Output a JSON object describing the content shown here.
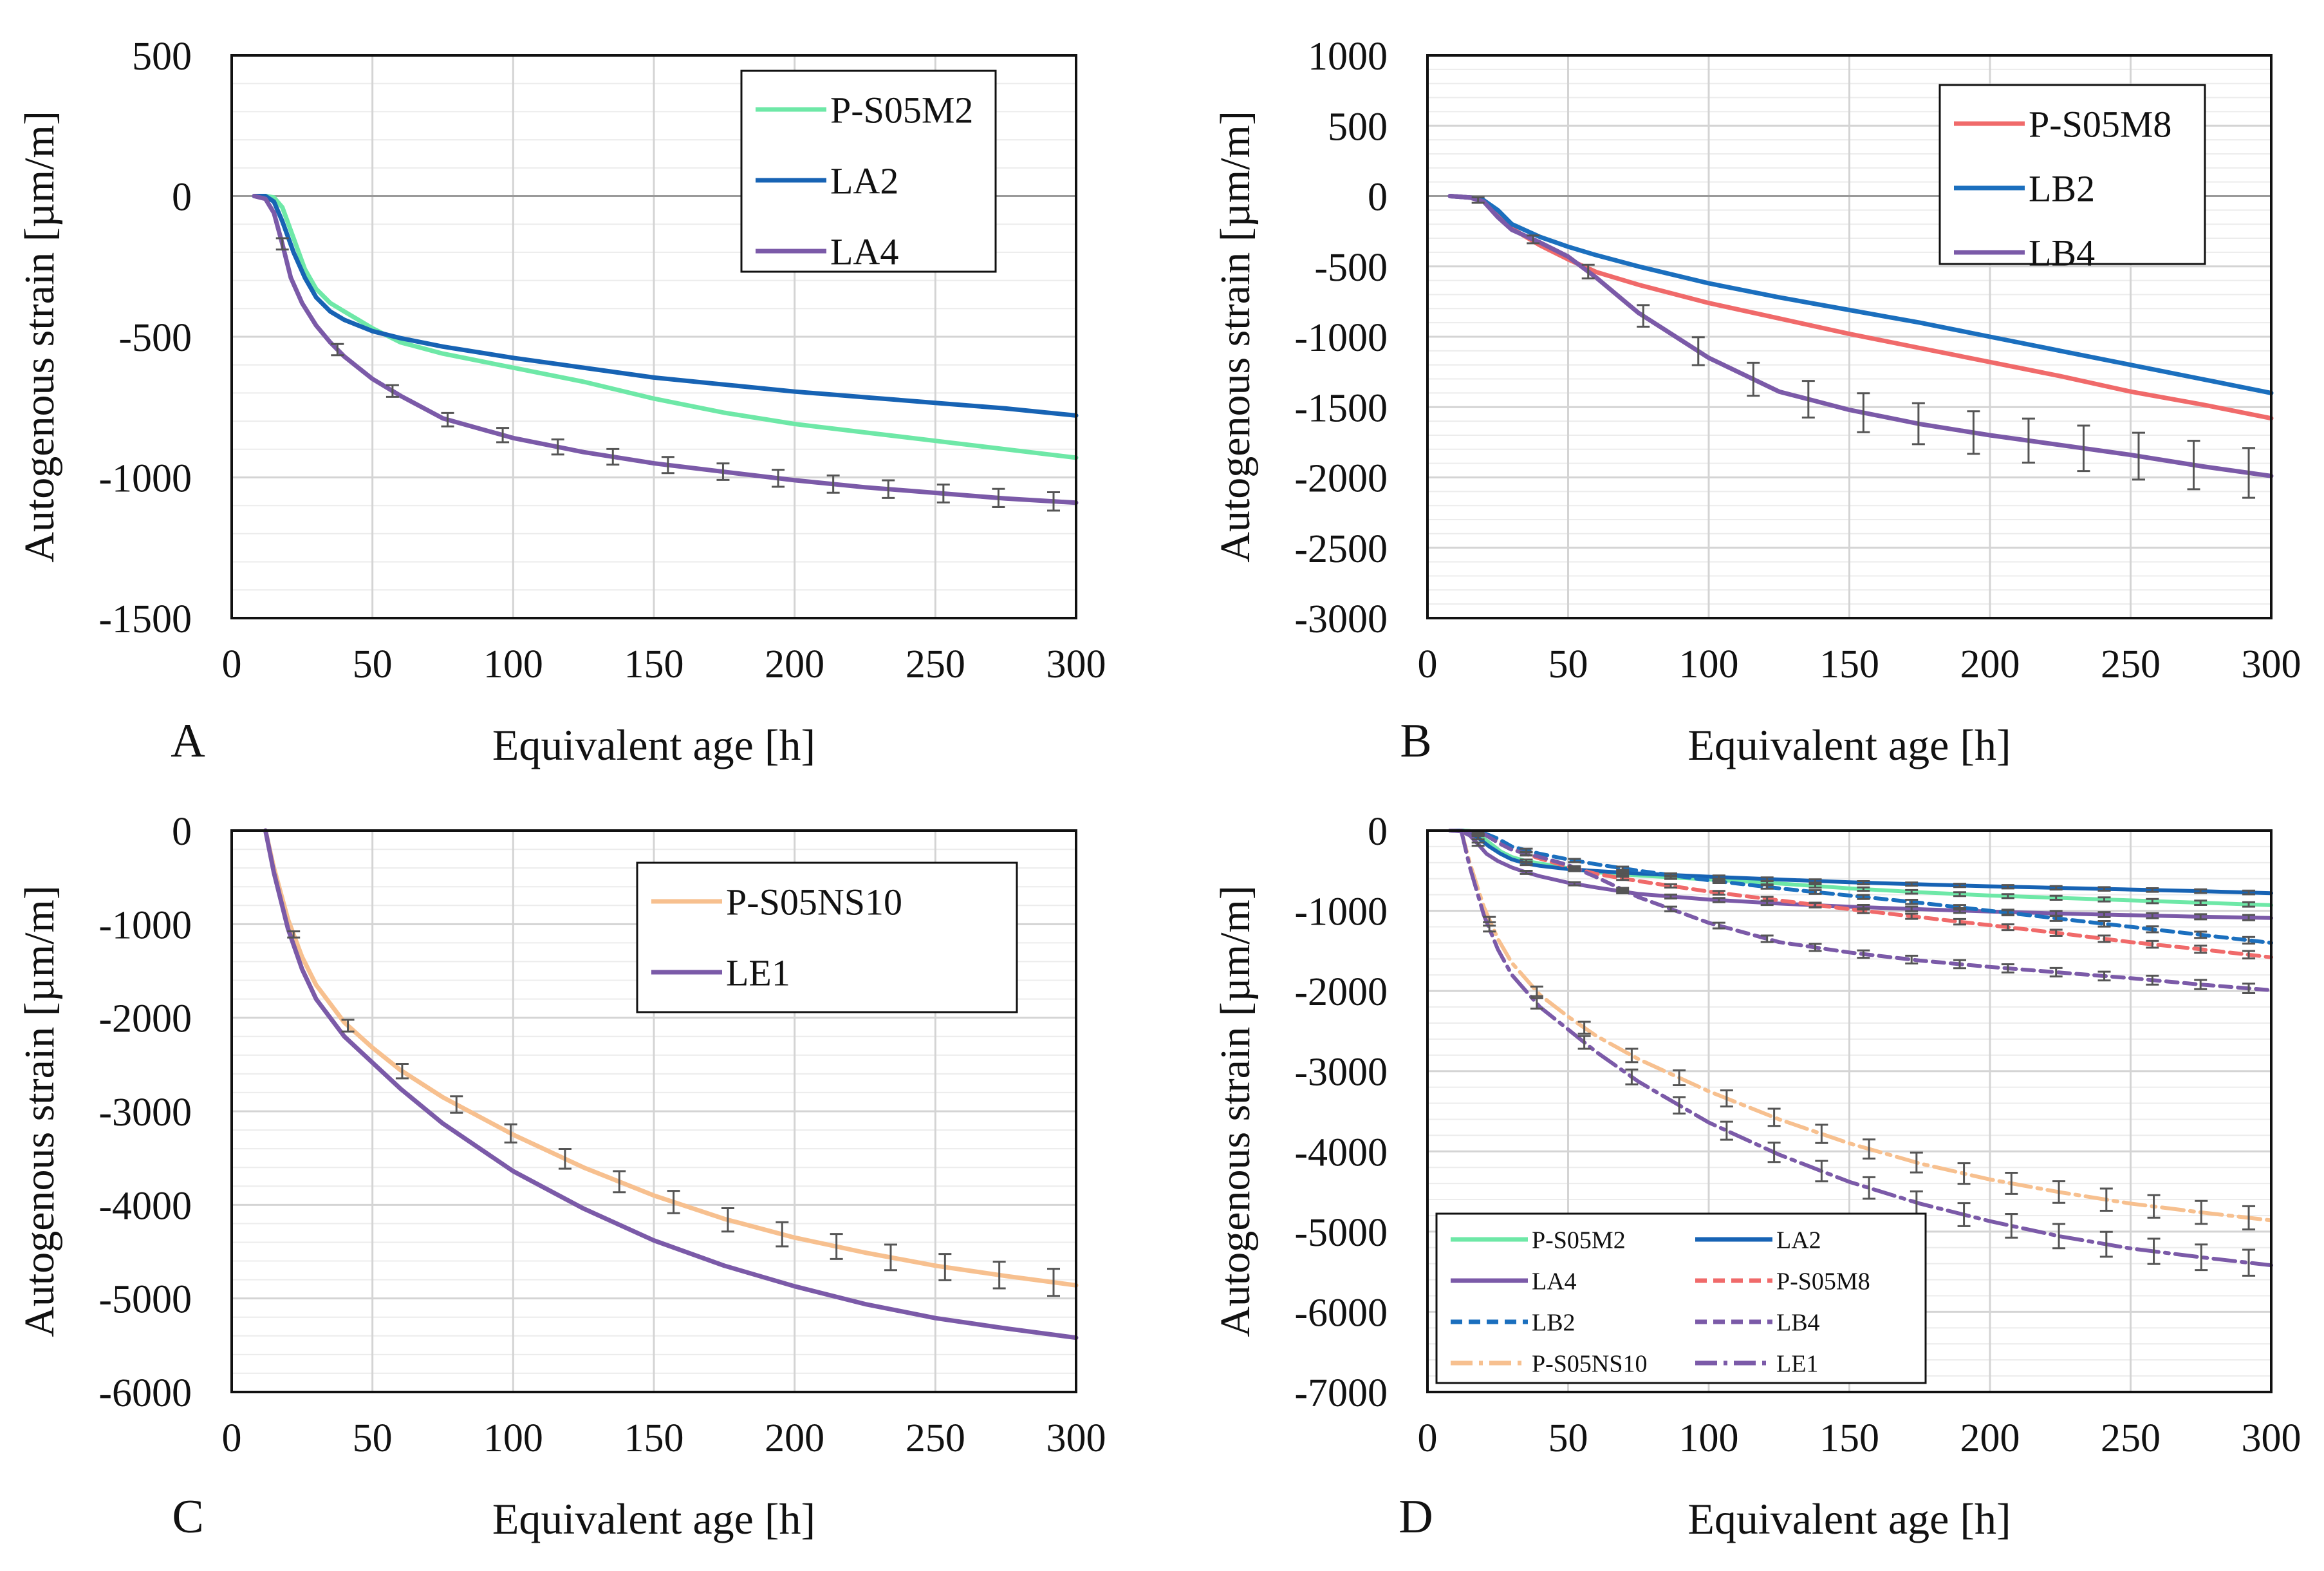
{
  "figure": {
    "colors": {
      "P-S05M2": "#6ee8a7",
      "LA2": "#1763b4",
      "LA4": "#7b5aa8",
      "P-S05M8": "#f06a6a",
      "LB2": "#1b6fbe",
      "LB4": "#7b5aa8",
      "P-S05NS10": "#f7c08f",
      "LE1": "#7b5aa8",
      "axis": "#111111",
      "grid_major": "#d4d4d4",
      "grid_minor": "#ececec",
      "error_bar": "#555555"
    }
  },
  "chart_data": [
    {
      "panel": "A",
      "type": "line",
      "panel_label": "A",
      "xlabel": "Equivalent age [h]",
      "ylabel": "Autogenous strain [µm/m]",
      "xlim": [
        0,
        300
      ],
      "ylim": [
        -1500,
        500
      ],
      "xticks": [
        0,
        50,
        100,
        150,
        200,
        250,
        300
      ],
      "yticks": [
        500,
        0,
        -500,
        -1000,
        -1500
      ],
      "legend_position": "top-right",
      "series": [
        {
          "name": "P-S05M2",
          "style": "solid",
          "x": [
            8,
            12,
            15,
            18,
            22,
            26,
            30,
            35,
            40,
            45,
            50,
            60,
            75,
            100,
            125,
            150,
            175,
            200,
            225,
            250,
            275,
            300
          ],
          "y": [
            0,
            0,
            -5,
            -40,
            -150,
            -260,
            -330,
            -380,
            -410,
            -440,
            -470,
            -520,
            -560,
            -610,
            -660,
            -720,
            -770,
            -810,
            -840,
            -870,
            -900,
            -930
          ]
        },
        {
          "name": "LA2",
          "style": "solid",
          "x": [
            8,
            12,
            15,
            18,
            22,
            26,
            30,
            35,
            40,
            45,
            50,
            60,
            75,
            100,
            125,
            150,
            175,
            200,
            225,
            250,
            275,
            300
          ],
          "y": [
            0,
            0,
            -20,
            -90,
            -200,
            -290,
            -360,
            -410,
            -440,
            -460,
            -480,
            -505,
            -535,
            -575,
            -610,
            -645,
            -670,
            -695,
            -715,
            -735,
            -755,
            -780
          ]
        },
        {
          "name": "LA4",
          "style": "solid",
          "x": [
            8,
            12,
            15,
            18,
            21,
            25,
            30,
            35,
            40,
            45,
            50,
            60,
            75,
            100,
            125,
            150,
            175,
            200,
            225,
            250,
            275,
            300
          ],
          "y": [
            0,
            -10,
            -60,
            -170,
            -290,
            -380,
            -460,
            -520,
            -570,
            -610,
            -650,
            -710,
            -790,
            -860,
            -910,
            -950,
            -980,
            -1010,
            -1035,
            -1055,
            -1075,
            -1090
          ]
        }
      ],
      "error_bar_series": "LA4"
    },
    {
      "panel": "B",
      "type": "line",
      "panel_label": "B",
      "xlabel": "Equivalent age [h]",
      "ylabel": "Autogenous strain [µm/m]",
      "xlim": [
        0,
        300
      ],
      "ylim": [
        -3000,
        1000
      ],
      "xticks": [
        0,
        50,
        100,
        150,
        200,
        250,
        300
      ],
      "yticks": [
        1000,
        500,
        0,
        -500,
        -1000,
        -1500,
        -2000,
        -2500,
        -3000
      ],
      "legend_position": "top-right",
      "series": [
        {
          "name": "P-S05M8",
          "style": "solid",
          "x": [
            8,
            15,
            20,
            25,
            30,
            40,
            50,
            60,
            75,
            100,
            125,
            150,
            175,
            200,
            225,
            250,
            275,
            300
          ],
          "y": [
            0,
            -10,
            -30,
            -120,
            -230,
            -350,
            -450,
            -540,
            -630,
            -760,
            -870,
            -980,
            -1080,
            -1180,
            -1280,
            -1390,
            -1480,
            -1580
          ]
        },
        {
          "name": "LB2",
          "style": "solid",
          "x": [
            8,
            15,
            20,
            25,
            30,
            40,
            50,
            60,
            75,
            100,
            125,
            150,
            175,
            200,
            225,
            250,
            275,
            300
          ],
          "y": [
            0,
            -10,
            -30,
            -100,
            -200,
            -290,
            -360,
            -420,
            -500,
            -620,
            -720,
            -810,
            -900,
            -1000,
            -1100,
            -1200,
            -1300,
            -1400
          ]
        },
        {
          "name": "LB4",
          "style": "solid",
          "x": [
            8,
            15,
            20,
            25,
            30,
            40,
            50,
            60,
            75,
            100,
            125,
            150,
            175,
            200,
            225,
            250,
            275,
            300
          ],
          "y": [
            0,
            -10,
            -40,
            -150,
            -240,
            -330,
            -430,
            -580,
            -830,
            -1150,
            -1390,
            -1520,
            -1620,
            -1700,
            -1770,
            -1840,
            -1920,
            -1990
          ]
        }
      ],
      "error_bar_series": "LB4"
    },
    {
      "panel": "C",
      "type": "line",
      "panel_label": "C",
      "xlabel": "Equivalent age [h]",
      "ylabel": "Autogenous strain [µm/m]",
      "xlim": [
        0,
        300
      ],
      "ylim": [
        -6000,
        0
      ],
      "xticks": [
        0,
        50,
        100,
        150,
        200,
        250,
        300
      ],
      "yticks": [
        0,
        -1000,
        -2000,
        -3000,
        -4000,
        -5000,
        -6000
      ],
      "legend_position": "top-right",
      "series": [
        {
          "name": "P-S05NS10",
          "style": "solid",
          "x": [
            12,
            15,
            20,
            25,
            30,
            40,
            50,
            60,
            75,
            100,
            125,
            150,
            175,
            200,
            225,
            250,
            275,
            300
          ],
          "y": [
            0,
            -400,
            -950,
            -1350,
            -1650,
            -2050,
            -2320,
            -2560,
            -2850,
            -3250,
            -3600,
            -3900,
            -4150,
            -4350,
            -4510,
            -4650,
            -4760,
            -4860
          ]
        },
        {
          "name": "LE1",
          "style": "solid",
          "x": [
            12,
            15,
            20,
            25,
            30,
            40,
            50,
            60,
            75,
            100,
            125,
            150,
            175,
            200,
            225,
            250,
            275,
            300
          ],
          "y": [
            0,
            -450,
            -1050,
            -1480,
            -1800,
            -2200,
            -2480,
            -2760,
            -3130,
            -3640,
            -4040,
            -4380,
            -4650,
            -4870,
            -5060,
            -5210,
            -5320,
            -5420
          ]
        }
      ],
      "error_bar_series": "P-S05NS10"
    },
    {
      "panel": "D",
      "type": "line",
      "panel_label": "D",
      "xlabel": "Equivalent age [h]",
      "ylabel": "Autogenous strain [µm/m]",
      "xlim": [
        0,
        300
      ],
      "ylim": [
        -7000,
        0
      ],
      "xticks": [
        0,
        50,
        100,
        150,
        200,
        250,
        300
      ],
      "yticks": [
        0,
        -1000,
        -2000,
        -3000,
        -4000,
        -5000,
        -6000,
        -7000
      ],
      "legend_position": "bottom-left",
      "legend_columns": 2,
      "series": [
        {
          "name": "P-S05M2",
          "style": "solid",
          "x": [
            8,
            12,
            15,
            18,
            22,
            26,
            30,
            35,
            40,
            45,
            50,
            60,
            75,
            100,
            125,
            150,
            175,
            200,
            225,
            250,
            275,
            300
          ],
          "y": [
            0,
            0,
            -5,
            -40,
            -150,
            -260,
            -330,
            -380,
            -410,
            -440,
            -470,
            -520,
            -560,
            -610,
            -660,
            -720,
            -770,
            -810,
            -840,
            -870,
            -900,
            -930
          ]
        },
        {
          "name": "LA2",
          "style": "solid",
          "x": [
            8,
            12,
            15,
            18,
            22,
            26,
            30,
            35,
            40,
            45,
            50,
            60,
            75,
            100,
            125,
            150,
            175,
            200,
            225,
            250,
            275,
            300
          ],
          "y": [
            0,
            0,
            -20,
            -90,
            -200,
            -290,
            -360,
            -410,
            -440,
            -460,
            -480,
            -505,
            -535,
            -575,
            -610,
            -645,
            -670,
            -695,
            -715,
            -735,
            -755,
            -780
          ]
        },
        {
          "name": "LA4",
          "style": "solid",
          "x": [
            8,
            12,
            15,
            18,
            21,
            25,
            30,
            35,
            40,
            45,
            50,
            60,
            75,
            100,
            125,
            150,
            175,
            200,
            225,
            250,
            275,
            300
          ],
          "y": [
            0,
            -10,
            -60,
            -170,
            -290,
            -380,
            -460,
            -520,
            -570,
            -610,
            -650,
            -710,
            -790,
            -860,
            -910,
            -950,
            -980,
            -1010,
            -1035,
            -1055,
            -1075,
            -1090
          ]
        },
        {
          "name": "P-S05M8",
          "style": "dashed",
          "x": [
            8,
            15,
            20,
            25,
            30,
            40,
            50,
            60,
            75,
            100,
            125,
            150,
            175,
            200,
            225,
            250,
            275,
            300
          ],
          "y": [
            0,
            -10,
            -30,
            -120,
            -230,
            -350,
            -450,
            -540,
            -630,
            -760,
            -870,
            -980,
            -1080,
            -1180,
            -1280,
            -1390,
            -1480,
            -1580
          ]
        },
        {
          "name": "LB2",
          "style": "dashed",
          "x": [
            8,
            15,
            20,
            25,
            30,
            40,
            50,
            60,
            75,
            100,
            125,
            150,
            175,
            200,
            225,
            250,
            275,
            300
          ],
          "y": [
            0,
            -10,
            -30,
            -100,
            -200,
            -290,
            -360,
            -420,
            -500,
            -620,
            -720,
            -810,
            -900,
            -1000,
            -1100,
            -1200,
            -1300,
            -1400
          ]
        },
        {
          "name": "LB4",
          "style": "dashed",
          "x": [
            8,
            15,
            20,
            25,
            30,
            40,
            50,
            60,
            75,
            100,
            125,
            150,
            175,
            200,
            225,
            250,
            275,
            300
          ],
          "y": [
            0,
            -10,
            -40,
            -150,
            -240,
            -330,
            -430,
            -580,
            -830,
            -1150,
            -1390,
            -1520,
            -1620,
            -1700,
            -1770,
            -1840,
            -1920,
            -1990
          ]
        },
        {
          "name": "P-S05NS10",
          "style": "dashdot",
          "x": [
            12,
            15,
            20,
            25,
            30,
            40,
            50,
            60,
            75,
            100,
            125,
            150,
            175,
            200,
            225,
            250,
            275,
            300
          ],
          "y": [
            0,
            -400,
            -950,
            -1350,
            -1650,
            -2050,
            -2320,
            -2560,
            -2850,
            -3250,
            -3600,
            -3900,
            -4150,
            -4350,
            -4510,
            -4650,
            -4760,
            -4860
          ]
        },
        {
          "name": "LE1",
          "style": "dashdot",
          "x": [
            12,
            15,
            20,
            25,
            30,
            40,
            50,
            60,
            75,
            100,
            125,
            150,
            175,
            200,
            225,
            250,
            275,
            300
          ],
          "y": [
            0,
            -450,
            -1050,
            -1480,
            -1800,
            -2200,
            -2480,
            -2760,
            -3130,
            -3640,
            -4040,
            -4380,
            -4650,
            -4870,
            -5060,
            -5210,
            -5320,
            -5420
          ]
        }
      ],
      "error_bar_series": "all"
    }
  ]
}
